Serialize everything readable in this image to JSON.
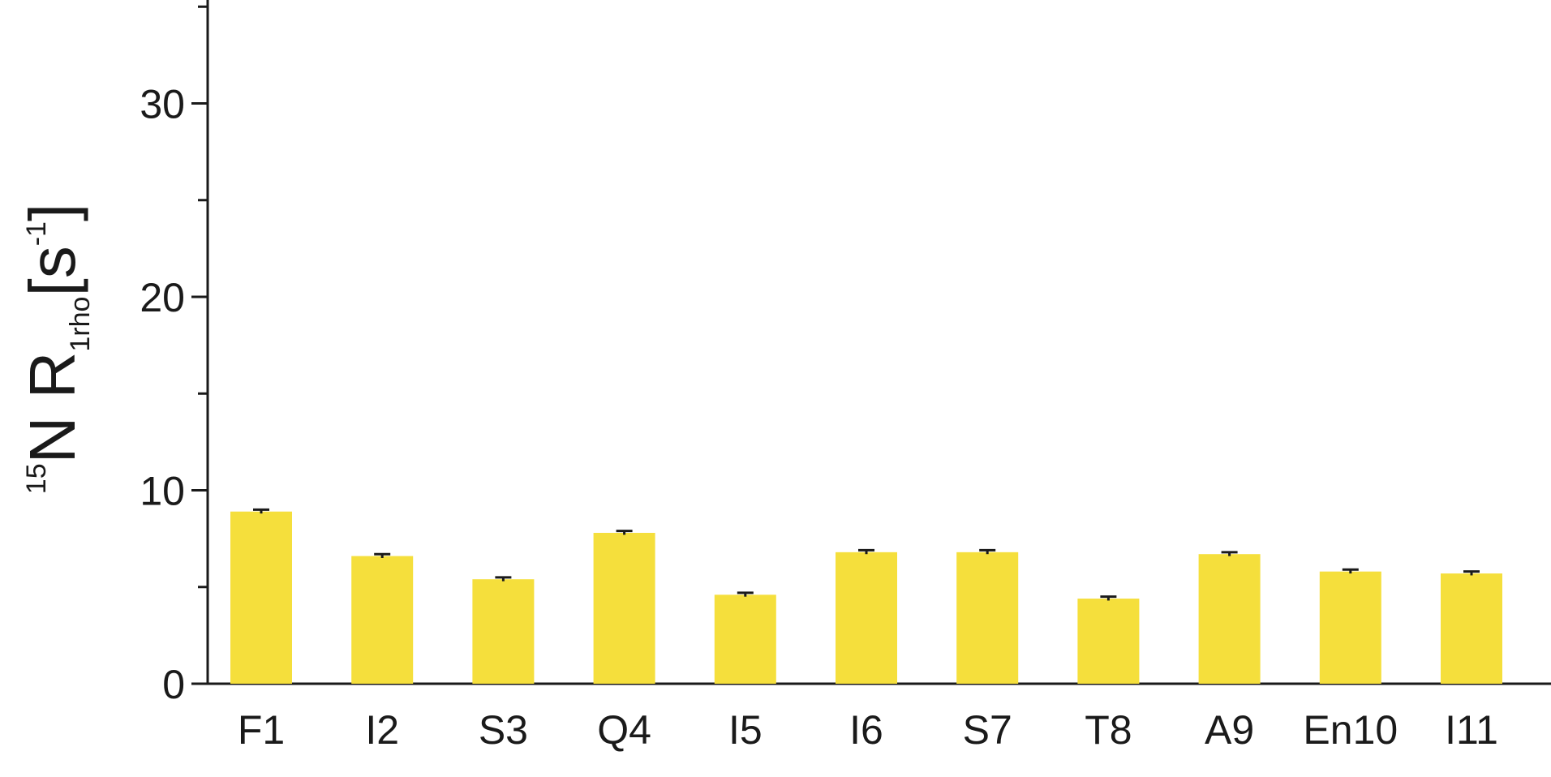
{
  "chart_data": {
    "type": "bar",
    "title": "",
    "xlabel": "",
    "ylabel": {
      "sup": "15",
      "main": "N R",
      "sub": "1rho",
      "unit_open": "[s",
      "unit_sup": "-1",
      "unit_close": "]"
    },
    "categories": [
      "F1",
      "I2",
      "S3",
      "Q4",
      "I5",
      "I6",
      "S7",
      "T8",
      "A9",
      "En10",
      "I11"
    ],
    "values": [
      8.9,
      6.6,
      5.4,
      7.8,
      4.6,
      6.8,
      6.8,
      4.4,
      6.7,
      5.8,
      5.7
    ],
    "errors": [
      0.1,
      0.1,
      0.1,
      0.1,
      0.1,
      0.1,
      0.1,
      0.1,
      0.1,
      0.1,
      0.1
    ],
    "ylim": [
      0,
      35
    ],
    "yticks": [
      0,
      10,
      20,
      30
    ],
    "minor_yticks": [
      5,
      15,
      25,
      35
    ],
    "bar_color": "#f5df3c",
    "error_color": "#1a1a1a",
    "axis_color": "#1a1a1a",
    "grid": false,
    "legend": "none"
  }
}
